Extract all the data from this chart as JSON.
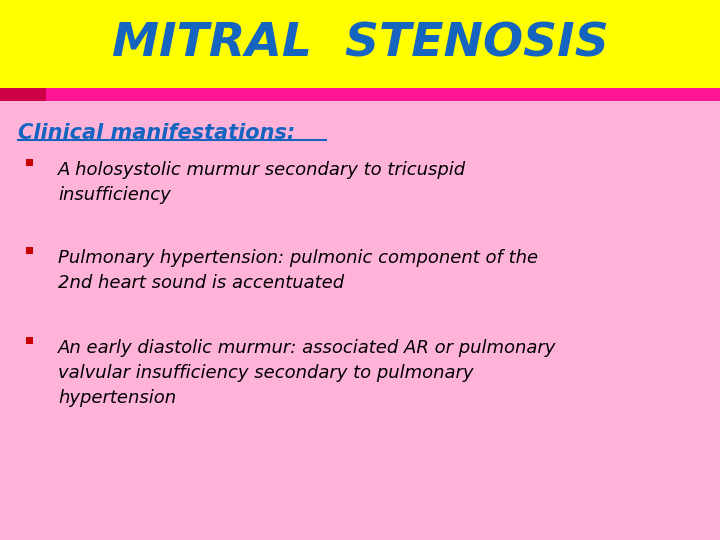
{
  "title": "MITRAL  STENOSIS",
  "title_color": "#1565C0",
  "title_bg_color": "#FFFF00",
  "accent_bar_color": "#FF1493",
  "accent_left_color": "#CC0044",
  "body_bg_color": "#FFB3D9",
  "heading": "Clinical manifestations:",
  "heading_color": "#1565C0",
  "bullet_color": "#CC0000",
  "body_text_color": "#000000",
  "bullets": [
    "A holosystolic murmur secondary to tricuspid\ninsufficiency",
    "Pulmonary hypertension: pulmonic component of the\n2nd heart sound is accentuated",
    "An early diastolic murmur: associated AR or pulmonary\nvalvular insufficiency secondary to pulmonary\nhypertension"
  ],
  "overall_bg": "#FFB3D9"
}
